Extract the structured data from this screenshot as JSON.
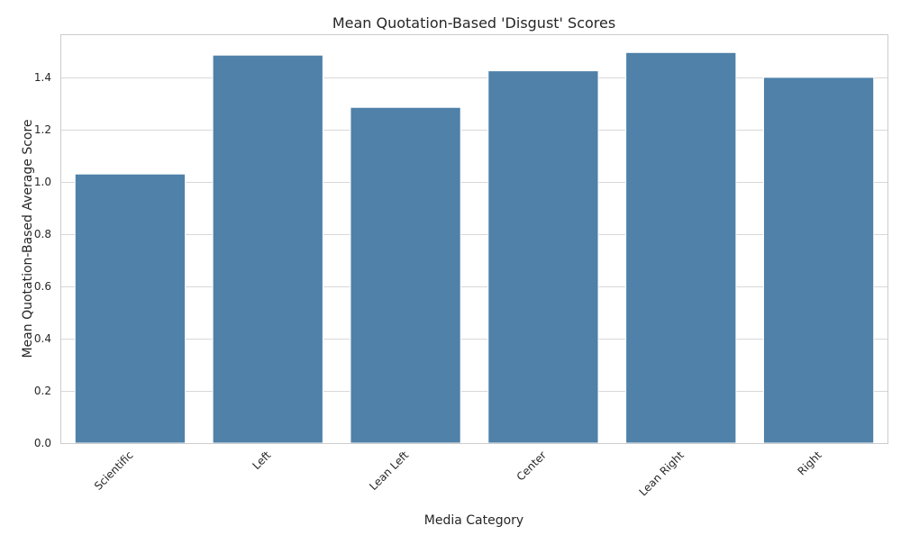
{
  "chart_data": {
    "type": "bar",
    "title": "Mean Quotation-Based 'Disgust' Scores",
    "xlabel": "Media Category",
    "ylabel": "Mean Quotation-Based Average Score",
    "categories": [
      "Scientific",
      "Left",
      "Lean Left",
      "Center",
      "Lean Right",
      "Right"
    ],
    "values": [
      1.03,
      1.485,
      1.285,
      1.425,
      1.495,
      1.4
    ],
    "ylim": [
      0,
      1.565
    ],
    "yticks": [
      0.0,
      0.2,
      0.4,
      0.6,
      0.8,
      1.0,
      1.2,
      1.4
    ],
    "ytick_labels": [
      "0.0",
      "0.2",
      "0.4",
      "0.6",
      "0.8",
      "1.0",
      "1.2",
      "1.4"
    ],
    "grid": "horizontal",
    "bar_color": "#4f81a9",
    "bar_edge_color": "#ffffff",
    "grid_color": "#d8d8d8",
    "axes_edge_color": "#cccccc",
    "text_color": "#262626"
  }
}
